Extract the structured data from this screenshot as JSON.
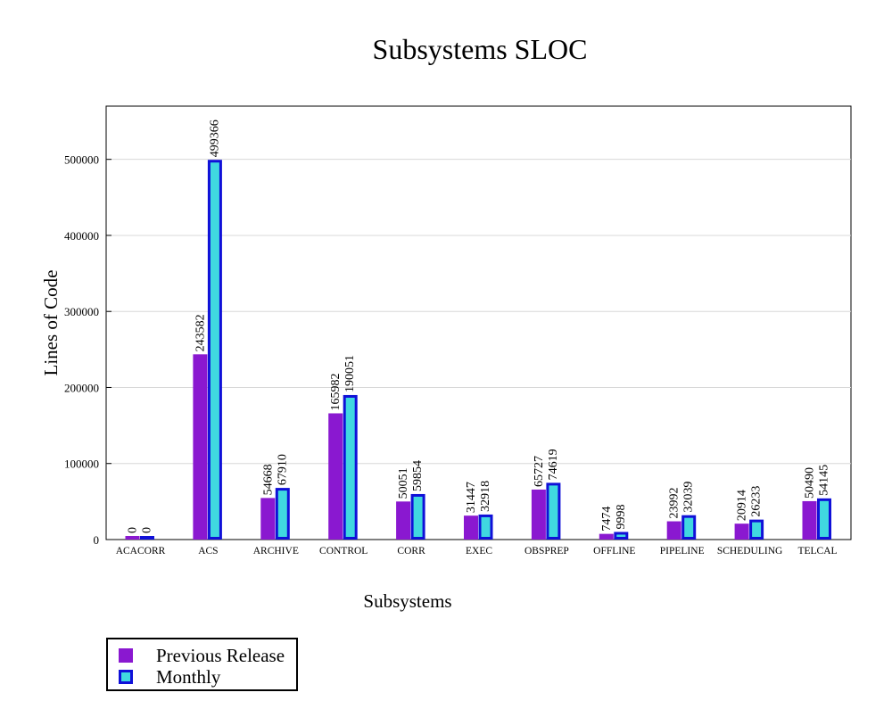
{
  "chart_data": {
    "type": "bar",
    "title": "Subsystems SLOC",
    "xlabel": "Subsystems",
    "ylabel": "Lines of Code",
    "ylim": [
      0,
      570000
    ],
    "yticks": [
      0,
      100000,
      200000,
      300000,
      400000,
      500000
    ],
    "grid": true,
    "legend_position": "bottom-left",
    "categories": [
      "ACACORR",
      "ACS",
      "ARCHIVE",
      "CONTROL",
      "CORR",
      "EXEC",
      "OBSPREP",
      "OFFLINE",
      "PIPELINE",
      "SCHEDULING",
      "TELCAL"
    ],
    "series": [
      {
        "name": "Previous Release",
        "color": "#8a18d0",
        "values": [
          0,
          243582,
          54668,
          165982,
          50051,
          31447,
          65727,
          7474,
          23992,
          20914,
          50490
        ]
      },
      {
        "name": "Monthly",
        "color": "#40d8e0",
        "border_color": "#1010d8",
        "values": [
          0,
          499366,
          67910,
          190051,
          59854,
          32918,
          74619,
          9998,
          32039,
          26233,
          54145
        ]
      }
    ]
  }
}
